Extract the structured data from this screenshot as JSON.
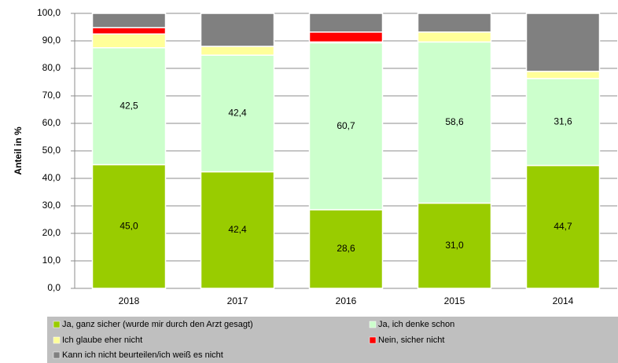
{
  "chart_data": {
    "type": "stacked_bar",
    "y_label": "Anteil in %",
    "categories": [
      "2018",
      "2017",
      "2016",
      "2015",
      "2014"
    ],
    "series": [
      {
        "name": "Ja, ganz sicher (wurde mir durch den Arzt gesagt)",
        "color": "#99cc00",
        "values": [
          45.0,
          42.4,
          28.6,
          31.0,
          44.7
        ],
        "value_labels": [
          "45,0",
          "42,4",
          "28,6",
          "31,0",
          "44,7"
        ]
      },
      {
        "name": "Ja, ich denke schon",
        "color": "#ccffcc",
        "values": [
          42.5,
          42.4,
          60.7,
          58.6,
          31.6
        ],
        "value_labels": [
          "42,5",
          "42,4",
          "60,7",
          "58,6",
          "31,6"
        ]
      },
      {
        "name": "Ich glaube eher nicht",
        "color": "#ffff99",
        "values": [
          5.0,
          3.2,
          0.3,
          3.6,
          2.6
        ]
      },
      {
        "name": "Nein, sicher nicht",
        "color": "#ff0000",
        "values": [
          2.3,
          0,
          3.6,
          0,
          0
        ]
      },
      {
        "name": "Kann ich nicht beurteilen/ich weiß es nicht",
        "color": "#808080",
        "values": [
          5.2,
          12.0,
          6.8,
          6.8,
          21.1
        ]
      }
    ],
    "ylim": [
      0,
      100
    ],
    "yticks": [
      {
        "value": 0,
        "label": "0,0"
      },
      {
        "value": 10,
        "label": "10,0"
      },
      {
        "value": 20,
        "label": "20,0"
      },
      {
        "value": 30,
        "label": "30,0"
      },
      {
        "value": 40,
        "label": "40,0"
      },
      {
        "value": 50,
        "label": "50,0"
      },
      {
        "value": 60,
        "label": "60,0"
      },
      {
        "value": 70,
        "label": "70,0"
      },
      {
        "value": 80,
        "label": "80,0"
      },
      {
        "value": 90,
        "label": "90,0"
      },
      {
        "value": 100,
        "label": "100,0"
      }
    ],
    "grid": true
  }
}
